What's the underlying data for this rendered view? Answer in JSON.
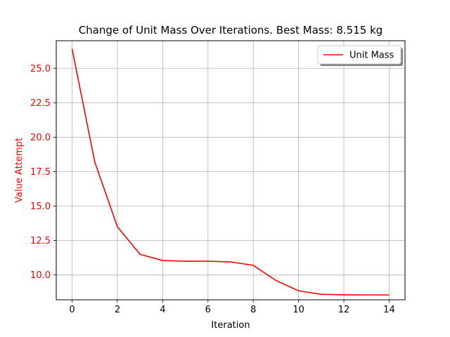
{
  "chart_data": {
    "type": "line",
    "title": "Change of Unit Mass Over Iterations. Best Mass: 8.515 kg",
    "xlabel": "Iteration",
    "ylabel": "Value Attempt",
    "xlim": [
      -0.7,
      14.7
    ],
    "ylim": [
      8.2,
      27.0
    ],
    "xticks": [
      0,
      2,
      4,
      6,
      8,
      10,
      12,
      14
    ],
    "xtick_labels": [
      "0",
      "2",
      "4",
      "6",
      "8",
      "10",
      "12",
      "14"
    ],
    "yticks": [
      10.0,
      12.5,
      15.0,
      17.5,
      20.0,
      22.5,
      25.0
    ],
    "ytick_labels": [
      "10.0",
      "12.5",
      "15.0",
      "17.5",
      "20.0",
      "22.5",
      "25.0"
    ],
    "grid": true,
    "legend_position": "top-right",
    "series": [
      {
        "name": "Unit Mass",
        "color": "#ff0000",
        "x": [
          0,
          1,
          2,
          3,
          4,
          5,
          6,
          7,
          8,
          9,
          10,
          11,
          12,
          13,
          14
        ],
        "y": [
          26.4,
          18.2,
          13.5,
          11.5,
          11.05,
          11.0,
          11.0,
          10.95,
          10.7,
          9.6,
          8.85,
          8.6,
          8.56,
          8.55,
          8.55
        ]
      }
    ],
    "colors": {
      "series_line": "#ff0000",
      "ylabel": "#ff0000",
      "ytick_labels": "#ff0000",
      "xtick_labels": "#000000",
      "grid": "#b0b0b0",
      "axes": "#000000"
    }
  }
}
